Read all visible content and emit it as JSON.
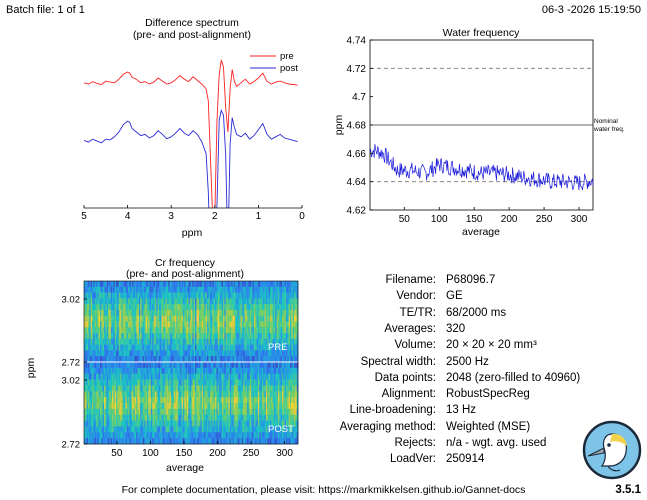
{
  "header": {
    "batch": "Batch file: 1 of 1",
    "datetime": "06-3 -2026 15:19:50"
  },
  "footer": {
    "doc_text": "For complete documentation, please visit: https://markmikkelsen.github.io/Gannet-docs",
    "version": "3.5.1"
  },
  "chart_data": [
    {
      "type": "line",
      "title": "Difference spectrum",
      "subtitle": "(pre- and post-alignment)",
      "xlabel": "ppm",
      "xlim": [
        5,
        0
      ],
      "x_reversed": true,
      "xticks": [
        "5",
        "4",
        "3",
        "2",
        "1",
        "0"
      ],
      "legend_position": "top-right",
      "series": [
        {
          "name": "pre",
          "color": "#ff2020",
          "x": [
            5.0,
            4.9,
            4.8,
            4.7,
            4.6,
            4.5,
            4.4,
            4.3,
            4.2,
            4.1,
            4.0,
            3.95,
            3.9,
            3.8,
            3.7,
            3.6,
            3.5,
            3.4,
            3.3,
            3.2,
            3.1,
            3.0,
            2.9,
            2.8,
            2.7,
            2.6,
            2.5,
            2.4,
            2.3,
            2.2,
            2.15,
            2.1,
            2.05,
            2.0,
            1.95,
            1.9,
            1.85,
            1.8,
            1.75,
            1.7,
            1.65,
            1.6,
            1.55,
            1.5,
            1.4,
            1.3,
            1.2,
            1.1,
            1.0,
            0.9,
            0.8,
            0.7,
            0.6,
            0.5,
            0.4,
            0.3,
            0.2,
            0.1
          ],
          "y": [
            0.55,
            0.5,
            0.6,
            0.52,
            0.48,
            0.62,
            0.58,
            0.55,
            0.7,
            0.9,
            1.0,
            0.95,
            0.78,
            0.7,
            0.55,
            0.6,
            0.5,
            0.58,
            0.75,
            0.62,
            0.5,
            0.55,
            0.68,
            0.85,
            0.7,
            0.6,
            0.8,
            0.65,
            0.5,
            0.3,
            -0.2,
            -2.5,
            -5.0,
            -5.0,
            -1.0,
            0.9,
            1.5,
            1.2,
            -0.5,
            -1.5,
            0.3,
            1.1,
            0.6,
            0.4,
            0.55,
            0.7,
            0.5,
            0.6,
            0.75,
            0.95,
            0.6,
            0.5,
            0.58,
            0.62,
            0.55,
            0.5,
            0.48,
            0.45
          ]
        },
        {
          "name": "post",
          "color": "#2a2ad6",
          "x": [
            5.0,
            4.9,
            4.8,
            4.7,
            4.6,
            4.5,
            4.4,
            4.3,
            4.2,
            4.1,
            4.0,
            3.95,
            3.9,
            3.8,
            3.7,
            3.6,
            3.5,
            3.4,
            3.3,
            3.2,
            3.1,
            3.0,
            2.9,
            2.8,
            2.7,
            2.6,
            2.5,
            2.4,
            2.3,
            2.2,
            2.15,
            2.1,
            2.05,
            2.0,
            1.95,
            1.9,
            1.85,
            1.8,
            1.75,
            1.7,
            1.65,
            1.6,
            1.55,
            1.5,
            1.4,
            1.3,
            1.2,
            1.1,
            1.0,
            0.9,
            0.8,
            0.7,
            0.6,
            0.5,
            0.4,
            0.3,
            0.2,
            0.1
          ],
          "y": [
            -0.35,
            -0.42,
            -0.3,
            -0.38,
            -0.45,
            -0.3,
            -0.33,
            -0.2,
            0.0,
            0.3,
            0.45,
            0.4,
            0.15,
            0.0,
            -0.15,
            -0.1,
            -0.25,
            -0.15,
            0.05,
            -0.1,
            -0.28,
            -0.2,
            -0.05,
            0.15,
            -0.05,
            -0.15,
            0.05,
            -0.1,
            -0.4,
            -0.9,
            -2.5,
            -5.0,
            -5.0,
            -5.0,
            -3.0,
            0.5,
            0.9,
            0.7,
            -1.0,
            -5.0,
            -0.5,
            0.6,
            0.2,
            -0.1,
            -0.2,
            -0.05,
            -0.3,
            -0.15,
            0.1,
            0.35,
            -0.1,
            -0.3,
            -0.2,
            -0.1,
            -0.25,
            -0.3,
            -0.35,
            -0.4
          ]
        }
      ]
    },
    {
      "type": "line",
      "title": "Water frequency",
      "xlabel": "average",
      "ylabel": "ppm",
      "xlim": [
        1,
        320
      ],
      "ylim": [
        4.62,
        4.74
      ],
      "xticks": [
        "50",
        "100",
        "150",
        "200",
        "250",
        "300"
      ],
      "yticks": [
        "4.62",
        "4.64",
        "4.66",
        "4.68",
        "4.7",
        "4.72",
        "4.74"
      ],
      "reference_lines": [
        {
          "y": 4.72,
          "style": "dashed"
        },
        {
          "y": 4.68,
          "style": "solid",
          "label": "Nominal water freq."
        },
        {
          "y": 4.64,
          "style": "dashed"
        }
      ],
      "series_color": "#1a1ad8",
      "trend": {
        "x": [
          1,
          10,
          20,
          30,
          40,
          60,
          80,
          100,
          120,
          140,
          160,
          180,
          200,
          220,
          240,
          260,
          280,
          300,
          320
        ],
        "y": [
          4.662,
          4.662,
          4.66,
          4.654,
          4.648,
          4.648,
          4.646,
          4.652,
          4.65,
          4.648,
          4.646,
          4.646,
          4.645,
          4.643,
          4.642,
          4.64,
          4.64,
          4.639,
          4.641
        ]
      },
      "noise_amplitude": 0.006
    },
    {
      "type": "heatmap",
      "title": "Cr frequency",
      "subtitle": "(pre- and post-alignment)",
      "xlabel": "average",
      "ylabel": "ppm",
      "xlim": [
        1,
        320
      ],
      "xticks": [
        "50",
        "100",
        "150",
        "200",
        "250",
        "300"
      ],
      "panels": [
        {
          "label": "PRE",
          "yticks": [
            "3.02",
            "2.72"
          ]
        },
        {
          "label": "POST",
          "yticks": [
            "3.02",
            "2.72"
          ]
        }
      ],
      "colormap": [
        "#3e26a8",
        "#2c7ff2",
        "#1ac5c2",
        "#7dd05c",
        "#f2c93a",
        "#f9fb15"
      ]
    }
  ],
  "info": [
    {
      "label": "Filename:",
      "value": "P68096.7"
    },
    {
      "label": "Vendor:",
      "value": "GE"
    },
    {
      "label": "TE/TR:",
      "value": "68/2000 ms"
    },
    {
      "label": "Averages:",
      "value": "320"
    },
    {
      "label": "Volume:",
      "value": "20 × 20 × 20 mm³"
    },
    {
      "label": "Spectral width:",
      "value": "2500 Hz"
    },
    {
      "label": "Data points:",
      "value": "2048 (zero-filled to 40960)"
    },
    {
      "label": "Alignment:",
      "value": "RobustSpecReg"
    },
    {
      "label": "Line-broadening:",
      "value": "13 Hz"
    },
    {
      "label": "Averaging method:",
      "value": "Weighted (MSE)"
    },
    {
      "label": "Rejects:",
      "value": "n/a - wgt. avg. used"
    },
    {
      "label": "LoadVer:",
      "value": "250914"
    }
  ],
  "logo": {
    "icon": "gannet-bird-logo"
  }
}
